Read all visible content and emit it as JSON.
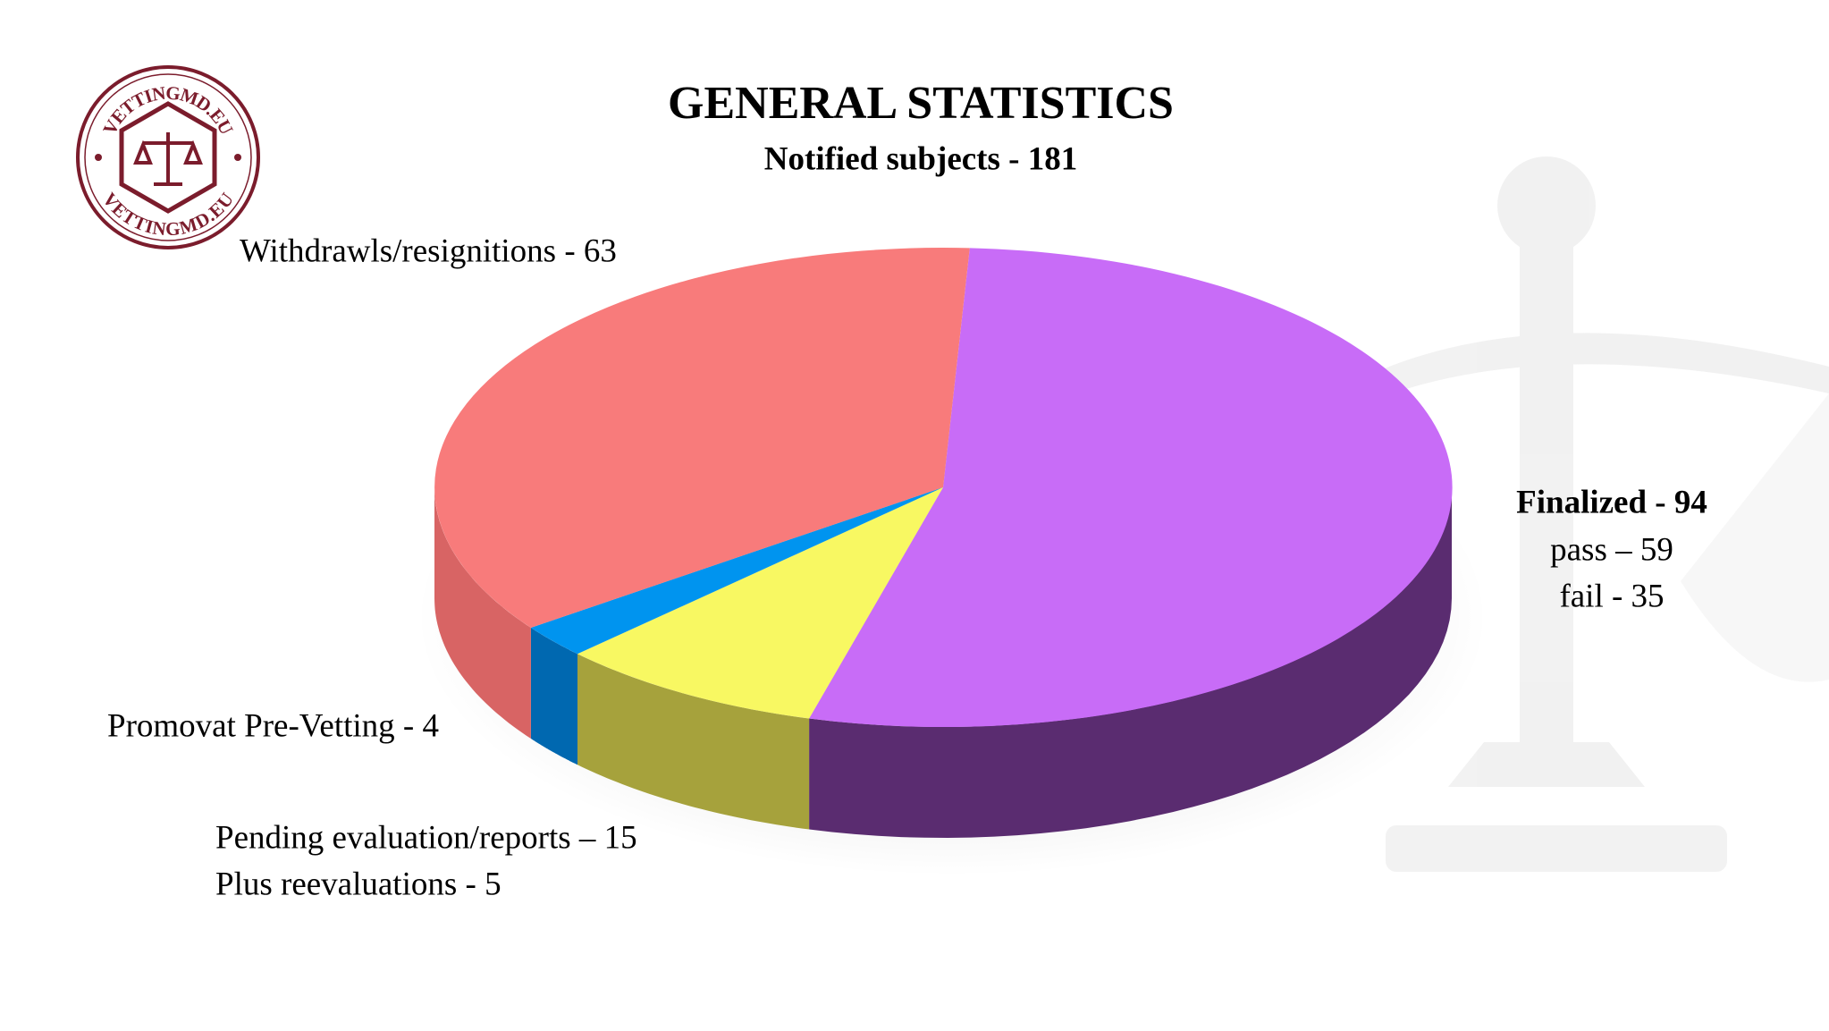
{
  "logo": {
    "text_top": "VETTINGMD.EU",
    "text_bottom": "VETTINGMD.EU"
  },
  "chart_data": {
    "type": "pie3d",
    "title": "GENERAL STATISTICS",
    "subtitle": "Notified subjects - 181",
    "values": [
      94,
      15,
      4,
      63
    ],
    "value_labels": [
      "Finalized - 94",
      "Pending evaluation/reports – 15",
      "Promovat Pre-Vetting - 4",
      "Withdrawls/resignitions - 63"
    ],
    "colors": [
      "#c86cf7",
      "#f8f862",
      "#0094ef",
      "#f87b7b"
    ],
    "side_colors": [
      "#5a2c70",
      "#a6a23c",
      "#0068b0",
      "#d86464"
    ],
    "annotations": [
      "pass – 59",
      "fail - 35",
      "Plus reevaluations - 5"
    ]
  }
}
